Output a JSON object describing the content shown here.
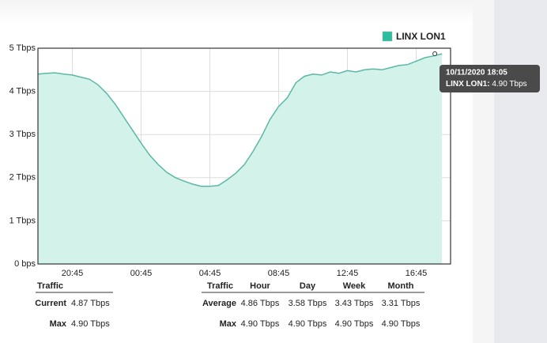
{
  "chart_data": {
    "type": "area",
    "x": [
      "18:45",
      "19:15",
      "19:45",
      "20:15",
      "20:45",
      "21:15",
      "21:45",
      "22:15",
      "22:45",
      "23:15",
      "23:45",
      "00:15",
      "00:45",
      "01:15",
      "01:45",
      "02:15",
      "02:45",
      "03:15",
      "03:45",
      "04:15",
      "04:45",
      "05:15",
      "05:45",
      "06:15",
      "06:45",
      "07:15",
      "07:45",
      "08:15",
      "08:45",
      "09:15",
      "09:45",
      "10:15",
      "10:45",
      "11:15",
      "11:45",
      "12:15",
      "12:45",
      "13:15",
      "13:45",
      "14:15",
      "14:45",
      "15:15",
      "15:45",
      "16:15",
      "16:45",
      "17:15",
      "17:45",
      "18:15"
    ],
    "xticks": [
      "20:45",
      "00:45",
      "04:45",
      "08:45",
      "12:45",
      "16:45"
    ],
    "series": [
      {
        "name": "LINX LON1",
        "color": "#5bb8a8",
        "fill": "#d3f2ea",
        "legend_color": "#2bbfa0",
        "values": [
          4.4,
          4.42,
          4.43,
          4.4,
          4.38,
          4.33,
          4.28,
          4.15,
          3.95,
          3.7,
          3.4,
          3.1,
          2.8,
          2.52,
          2.3,
          2.12,
          2.0,
          1.92,
          1.85,
          1.8,
          1.8,
          1.82,
          1.95,
          2.1,
          2.3,
          2.6,
          2.95,
          3.35,
          3.65,
          3.85,
          4.2,
          4.35,
          4.4,
          4.38,
          4.45,
          4.42,
          4.48,
          4.45,
          4.5,
          4.52,
          4.5,
          4.55,
          4.6,
          4.62,
          4.7,
          4.78,
          4.82,
          4.87
        ]
      }
    ],
    "ylim": [
      0,
      5
    ],
    "yticks": [
      {
        "value": 0,
        "label": "0 bps"
      },
      {
        "value": 1,
        "label": "1 Tbps"
      },
      {
        "value": 2,
        "label": "2 Tbps"
      },
      {
        "value": 3,
        "label": "3 Tbps"
      },
      {
        "value": 4,
        "label": "4 Tbps"
      },
      {
        "value": 5,
        "label": "5 Tbps"
      }
    ],
    "grid": true,
    "legend": "top-right",
    "tooltip": {
      "title": "10/11/2020 18:05",
      "label": "LINX LON1:",
      "value": "4.90 Tbps"
    }
  },
  "stats_left": {
    "header": [
      "Traffic"
    ],
    "rows": [
      [
        "Current",
        "4.87 Tbps"
      ],
      [
        "Max",
        "4.90 Tbps"
      ]
    ]
  },
  "stats_right": {
    "header": [
      "Traffic",
      "Hour",
      "Day",
      "Week",
      "Month"
    ],
    "rows": [
      [
        "Average",
        "4.86 Tbps",
        "3.58 Tbps",
        "3.43 Tbps",
        "3.31 Tbps"
      ],
      [
        "Max",
        "4.90 Tbps",
        "4.90 Tbps",
        "4.90 Tbps",
        "4.90 Tbps"
      ]
    ]
  }
}
